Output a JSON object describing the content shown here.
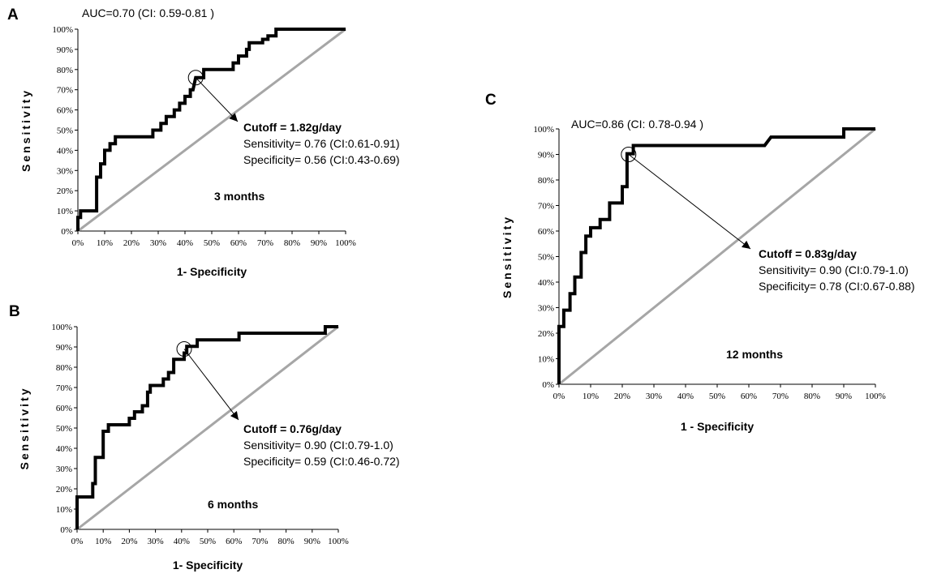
{
  "chart_data": [
    {
      "type": "line",
      "panel": "A",
      "auc_text": "AUC=0.70 (CI: 0.59-0.81 )",
      "xlabel": "1- Specificity",
      "ylabel": "Sensitivity",
      "period": "3 months",
      "cutoff_text": "Cutoff = 1.82g/day",
      "sensitivity_text": "Sensitivity= 0.76 (CI:0.61-0.91)",
      "specificity_text": "Specificity= 0.56 (CI:0.43-0.69)",
      "cutoff_point": [
        0.44,
        0.76
      ],
      "xlim": [
        0,
        1
      ],
      "ylim": [
        0,
        1
      ],
      "x_ticks": [
        "0%",
        "10%",
        "20%",
        "30%",
        "40%",
        "50%",
        "60%",
        "70%",
        "80%",
        "90%",
        "100%"
      ],
      "y_ticks": [
        "0%",
        "10%",
        "20%",
        "30%",
        "40%",
        "50%",
        "60%",
        "70%",
        "80%",
        "90%",
        "100%"
      ],
      "roc": [
        [
          0,
          0
        ],
        [
          0,
          0.067
        ],
        [
          0.01,
          0.067
        ],
        [
          0.01,
          0.1
        ],
        [
          0.07,
          0.1
        ],
        [
          0.07,
          0.267
        ],
        [
          0.085,
          0.267
        ],
        [
          0.085,
          0.333
        ],
        [
          0.1,
          0.333
        ],
        [
          0.1,
          0.4
        ],
        [
          0.12,
          0.4
        ],
        [
          0.12,
          0.433
        ],
        [
          0.14,
          0.433
        ],
        [
          0.14,
          0.467
        ],
        [
          0.16,
          0.467
        ],
        [
          0.28,
          0.467
        ],
        [
          0.28,
          0.5
        ],
        [
          0.31,
          0.5
        ],
        [
          0.31,
          0.533
        ],
        [
          0.33,
          0.533
        ],
        [
          0.33,
          0.567
        ],
        [
          0.36,
          0.567
        ],
        [
          0.36,
          0.6
        ],
        [
          0.38,
          0.6
        ],
        [
          0.38,
          0.633
        ],
        [
          0.4,
          0.633
        ],
        [
          0.4,
          0.667
        ],
        [
          0.42,
          0.667
        ],
        [
          0.42,
          0.7
        ],
        [
          0.43,
          0.7
        ],
        [
          0.44,
          0.76
        ],
        [
          0.47,
          0.76
        ],
        [
          0.47,
          0.8
        ],
        [
          0.58,
          0.8
        ],
        [
          0.58,
          0.833
        ],
        [
          0.6,
          0.833
        ],
        [
          0.6,
          0.867
        ],
        [
          0.63,
          0.867
        ],
        [
          0.63,
          0.9
        ],
        [
          0.64,
          0.9
        ],
        [
          0.64,
          0.933
        ],
        [
          0.69,
          0.933
        ],
        [
          0.69,
          0.95
        ],
        [
          0.71,
          0.95
        ],
        [
          0.71,
          0.967
        ],
        [
          0.74,
          0.967
        ],
        [
          0.74,
          1
        ],
        [
          1,
          1
        ]
      ]
    },
    {
      "type": "line",
      "panel": "B",
      "xlabel": "1- Specificity",
      "ylabel": "Sensitivity",
      "period": "6 months",
      "cutoff_text": "Cutoff = 0.76g/day",
      "sensitivity_text": "Sensitivity= 0.90 (CI:0.79-1.0)",
      "specificity_text": "Specificity= 0.59 (CI:0.46-0.72)",
      "cutoff_point": [
        0.41,
        0.89
      ],
      "xlim": [
        0,
        1
      ],
      "ylim": [
        0,
        1
      ],
      "x_ticks": [
        "0%",
        "10%",
        "20%",
        "30%",
        "40%",
        "50%",
        "60%",
        "70%",
        "80%",
        "90%",
        "100%"
      ],
      "y_ticks": [
        "0%",
        "10%",
        "20%",
        "30%",
        "40%",
        "50%",
        "60%",
        "70%",
        "80%",
        "90%",
        "100%"
      ],
      "roc": [
        [
          0,
          0
        ],
        [
          0,
          0.16
        ],
        [
          0.06,
          0.16
        ],
        [
          0.06,
          0.226
        ],
        [
          0.07,
          0.226
        ],
        [
          0.07,
          0.355
        ],
        [
          0.1,
          0.355
        ],
        [
          0.1,
          0.484
        ],
        [
          0.12,
          0.484
        ],
        [
          0.12,
          0.516
        ],
        [
          0.2,
          0.516
        ],
        [
          0.2,
          0.548
        ],
        [
          0.22,
          0.548
        ],
        [
          0.22,
          0.58
        ],
        [
          0.25,
          0.58
        ],
        [
          0.25,
          0.61
        ],
        [
          0.27,
          0.61
        ],
        [
          0.27,
          0.677
        ],
        [
          0.28,
          0.677
        ],
        [
          0.28,
          0.71
        ],
        [
          0.33,
          0.71
        ],
        [
          0.33,
          0.742
        ],
        [
          0.35,
          0.742
        ],
        [
          0.35,
          0.774
        ],
        [
          0.37,
          0.774
        ],
        [
          0.37,
          0.839
        ],
        [
          0.41,
          0.839
        ],
        [
          0.41,
          0.87
        ],
        [
          0.42,
          0.87
        ],
        [
          0.42,
          0.903
        ],
        [
          0.46,
          0.903
        ],
        [
          0.46,
          0.935
        ],
        [
          0.62,
          0.935
        ],
        [
          0.62,
          0.968
        ],
        [
          0.95,
          0.968
        ],
        [
          0.95,
          1
        ],
        [
          1,
          1
        ]
      ]
    },
    {
      "type": "line",
      "panel": "C",
      "auc_text": "AUC=0.86 (CI: 0.78-0.94 )",
      "xlabel": "1 - Specificity",
      "ylabel": "Sensitivity",
      "period": "12 months",
      "cutoff_text": "Cutoff = 0.83g/day",
      "sensitivity_text": "Sensitivity= 0.90 (CI:0.79-1.0)",
      "specificity_text": "Specificity= 0.78 (CI:0.67-0.88)",
      "cutoff_point": [
        0.22,
        0.9
      ],
      "xlim": [
        0,
        1
      ],
      "ylim": [
        0,
        1
      ],
      "x_ticks": [
        "0%",
        "10%",
        "20%",
        "30%",
        "40%",
        "50%",
        "60%",
        "70%",
        "80%",
        "90%",
        "100%"
      ],
      "y_ticks": [
        "0%",
        "10%",
        "20%",
        "30%",
        "40%",
        "50%",
        "60%",
        "70%",
        "80%",
        "90%",
        "100%"
      ],
      "roc": [
        [
          0,
          0
        ],
        [
          0,
          0.226
        ],
        [
          0.015,
          0.226
        ],
        [
          0.015,
          0.29
        ],
        [
          0.035,
          0.29
        ],
        [
          0.035,
          0.355
        ],
        [
          0.05,
          0.355
        ],
        [
          0.05,
          0.42
        ],
        [
          0.07,
          0.42
        ],
        [
          0.07,
          0.516
        ],
        [
          0.085,
          0.516
        ],
        [
          0.085,
          0.58
        ],
        [
          0.1,
          0.58
        ],
        [
          0.1,
          0.613
        ],
        [
          0.13,
          0.613
        ],
        [
          0.13,
          0.645
        ],
        [
          0.16,
          0.645
        ],
        [
          0.16,
          0.71
        ],
        [
          0.2,
          0.71
        ],
        [
          0.2,
          0.774
        ],
        [
          0.215,
          0.774
        ],
        [
          0.215,
          0.903
        ],
        [
          0.235,
          0.903
        ],
        [
          0.235,
          0.935
        ],
        [
          0.65,
          0.935
        ],
        [
          0.67,
          0.968
        ],
        [
          0.9,
          0.968
        ],
        [
          0.9,
          1
        ],
        [
          1,
          1
        ]
      ]
    }
  ]
}
